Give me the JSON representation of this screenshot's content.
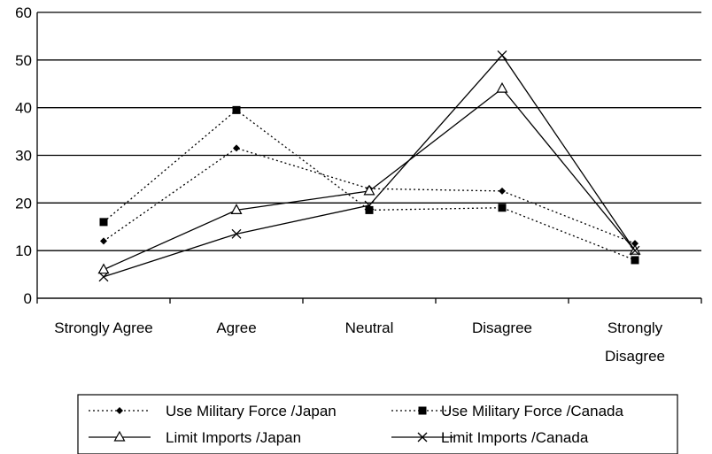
{
  "chart_data": {
    "type": "line",
    "title": "",
    "xlabel": "",
    "ylabel": "",
    "categories": [
      [
        "Strongly Agree"
      ],
      [
        "Agree"
      ],
      [
        "Neutral"
      ],
      [
        "Disagree"
      ],
      [
        "Strongly",
        "Disagree"
      ]
    ],
    "ylim": [
      0,
      60
    ],
    "yticks": [
      0,
      10,
      20,
      30,
      40,
      50,
      60
    ],
    "grid": true,
    "legend_position": "bottom",
    "series": [
      {
        "name": "Use Military Force /Japan",
        "values": [
          12,
          31.5,
          23,
          22.5,
          11.5
        ],
        "line": "dotted",
        "marker": "diamond",
        "color": "#000000"
      },
      {
        "name": "Use Military Force /Canada",
        "values": [
          16,
          39.5,
          18.5,
          19,
          8
        ],
        "line": "dotted",
        "marker": "square",
        "color": "#000000"
      },
      {
        "name": "Limit Imports /Japan",
        "values": [
          6,
          18.5,
          22.5,
          44,
          10
        ],
        "line": "solid",
        "marker": "triangle",
        "color": "#000000"
      },
      {
        "name": "Limit Imports /Canada",
        "values": [
          4.5,
          13.5,
          19.5,
          51,
          10
        ],
        "line": "solid",
        "marker": "x",
        "color": "#000000"
      }
    ]
  }
}
